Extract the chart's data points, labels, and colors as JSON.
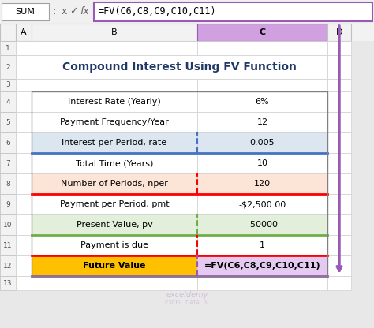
{
  "title": "Compound Interest Using FV Function",
  "formula_bar_text": "=FV(C6,C8,C9,C10,C11)",
  "name_box": "SUM",
  "col_headers": [
    "A",
    "B",
    "C",
    "D"
  ],
  "rows": [
    {
      "label": "",
      "value": "",
      "row": 1
    },
    {
      "label": "Compound Interest Using FV Function",
      "value": "",
      "row": 2
    },
    {
      "label": "",
      "value": "",
      "row": 3
    },
    {
      "label": "Interest Rate (Yearly)",
      "value": "6%",
      "row": 4
    },
    {
      "label": "Payment Frequency/Year",
      "value": "12",
      "row": 5
    },
    {
      "label": "Interest per Period, rate",
      "value": "0.005",
      "row": 6
    },
    {
      "label": "Total Time (Years)",
      "value": "10",
      "row": 7
    },
    {
      "label": "Number of Periods, nper",
      "value": "120",
      "row": 8
    },
    {
      "label": "Payment per Period, pmt",
      "value": "-$2,500.00",
      "row": 9
    },
    {
      "label": "Present Value, pv",
      "value": "-50000",
      "row": 10
    },
    {
      "label": "Payment is due",
      "value": "1",
      "row": 11
    },
    {
      "label": "Future Value",
      "value": "=FV(C6,C8,C9,C10,C11)",
      "row": 12
    },
    {
      "label": "",
      "value": "",
      "row": 13
    }
  ],
  "row_heights": {
    "1": 18,
    "2": 30,
    "3": 16,
    "4": 26,
    "5": 26,
    "6": 26,
    "7": 26,
    "8": 26,
    "9": 26,
    "10": 26,
    "11": 26,
    "12": 26,
    "13": 18
  },
  "colors": {
    "title_text": "#1f3864",
    "white": "#ffffff",
    "row6_bg": "#dce6f1",
    "row8_bg": "#fce4d6",
    "row10_bg": "#e2efda",
    "row12_label_bg": "#ffc000",
    "row12_value_bg": "#e4c9f0",
    "formula_bar_border": "#9b59b6",
    "col_C_highlight": "#9b59b6",
    "col_D_arrow": "#9b59b6",
    "row6_border": "#4472c4",
    "row8_border": "#ff0000",
    "row10_border": "#70ad47",
    "row11_border": "#ff0000",
    "row12_border": "#9b59b6",
    "excel_bg": "#e8e8e8"
  },
  "figsize": [
    4.74,
    4.16
  ],
  "dpi": 100
}
